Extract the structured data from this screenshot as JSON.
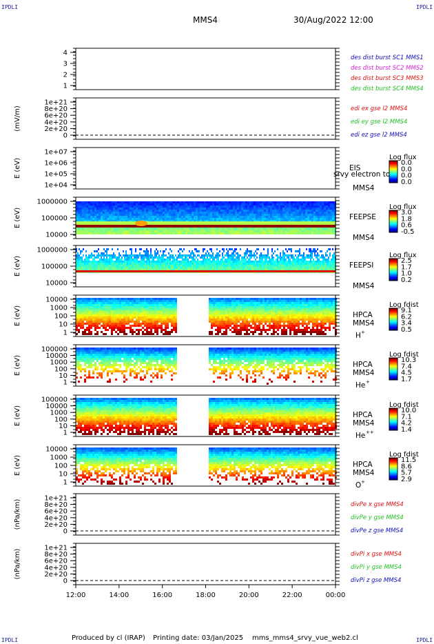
{
  "corners": {
    "tl": "IPDLI",
    "tr": "IPDLI",
    "bl": "IPDLI",
    "br": "IPDLI"
  },
  "header": {
    "spacecraft": "MMS4",
    "datetime": "30/Aug/2022 12:00"
  },
  "footer": {
    "credit": "Produced by cl (IRAP)",
    "printing": "Printing date: 03/Jan/2025",
    "file": "mms_mms4_srvy_vue_web2.cl"
  },
  "colors": {
    "blue": "#1010c0",
    "magenta": "#d020d0",
    "red": "#e01010",
    "green": "#20c020"
  },
  "chart_data": [
    {
      "type": "line",
      "panel": "burst",
      "y_ticks": [
        "1",
        "2",
        "3",
        "4"
      ],
      "ylim": [
        0.5,
        4.5
      ],
      "legend": [
        {
          "name": "des dist burst SC1 MMS1",
          "color": "#1010c0"
        },
        {
          "name": "des dist burst SC2 MMS2",
          "color": "#d020d0"
        },
        {
          "name": "des dist burst SC3 MMS3",
          "color": "#e01010"
        },
        {
          "name": "des dist burst SC4 MMS4",
          "color": "#20c020"
        }
      ]
    },
    {
      "type": "line",
      "panel": "edi",
      "ylabel": "(mV/m)",
      "y_ticks": [
        "0",
        "2e+20",
        "4e+20",
        "6e+20",
        "8e+20",
        "1e+21"
      ],
      "ylim": [
        0,
        1e+21
      ],
      "zero_line": true,
      "legend": [
        {
          "name": "edi ex gse l2 MMS4",
          "color": "#e01010"
        },
        {
          "name": "edi ey gse l2 MMS4",
          "color": "#20c020"
        },
        {
          "name": "edi ez gse l2 MMS4",
          "color": "#1010c0"
        }
      ]
    },
    {
      "type": "heatmap",
      "panel": "eis",
      "ylabel": "E (eV)",
      "y_ticks": [
        "1e+04",
        "1e+05",
        "1e+06",
        "1e+07"
      ],
      "instrument": "EIS",
      "label_extra": "srvy electron to",
      "spacecraft": "MMS4",
      "colorbar": {
        "title": "Log flux",
        "ticks": [
          "0.0",
          "0.0",
          "0.0",
          "0.0"
        ]
      }
    },
    {
      "type": "heatmap",
      "panel": "feepse",
      "ylabel": "E (eV)",
      "y_ticks": [
        "10000",
        "100000",
        "1000000"
      ],
      "instrument": "FEEPSE",
      "spacecraft": "MMS4",
      "colorbar": {
        "title": "Log flux",
        "ticks": [
          "3.0",
          "1.8",
          "0.6",
          "-0.5"
        ]
      }
    },
    {
      "type": "heatmap",
      "panel": "feepsi",
      "ylabel": "E (eV)",
      "y_ticks": [
        "10000",
        "100000",
        "1000000"
      ],
      "instrument": "FEEPSI",
      "spacecraft": "MMS4",
      "colorbar": {
        "title": "Log flux",
        "ticks": [
          "2.5",
          "1.7",
          "1.0",
          "0.2"
        ]
      }
    },
    {
      "type": "heatmap",
      "panel": "hpca_h",
      "ylabel": "E (eV)",
      "y_ticks": [
        "1",
        "10",
        "100",
        "1000",
        "10000"
      ],
      "instrument": "HPCA",
      "spacecraft": "MMS4",
      "species": "H",
      "species_sup": "+",
      "colorbar": {
        "title": "Log fdist",
        "ticks": [
          "9.1",
          "6.2",
          "3.4",
          "0.5"
        ]
      }
    },
    {
      "type": "heatmap",
      "panel": "hpca_he1",
      "ylabel": "E (eV)",
      "y_ticks": [
        "1",
        "10",
        "100",
        "1000",
        "10000",
        "100000"
      ],
      "instrument": "HPCA",
      "spacecraft": "MMS4",
      "species": "He",
      "species_sup": "+",
      "colorbar": {
        "title": "Log fdist",
        "ticks": [
          "10.3",
          "7.4",
          "4.5",
          "1.7"
        ]
      }
    },
    {
      "type": "heatmap",
      "panel": "hpca_he2",
      "ylabel": "E (eV)",
      "y_ticks": [
        "1",
        "10",
        "100",
        "1000",
        "10000",
        "100000"
      ],
      "instrument": "HPCA",
      "spacecraft": "MMS4",
      "species": "He",
      "species_sup": "++",
      "colorbar": {
        "title": "Log fdist",
        "ticks": [
          "10.0",
          "7.1",
          "4.2",
          "1.4"
        ]
      }
    },
    {
      "type": "heatmap",
      "panel": "hpca_o",
      "ylabel": "E (eV)",
      "y_ticks": [
        "1",
        "10",
        "100",
        "1000",
        "10000"
      ],
      "instrument": "HPCA",
      "spacecraft": "MMS4",
      "species": "O",
      "species_sup": "+",
      "colorbar": {
        "title": "Log fdist",
        "ticks": [
          "11.5",
          "8.6",
          "5.7",
          "2.9"
        ]
      }
    },
    {
      "type": "line",
      "panel": "divpe",
      "ylabel": "(nPa/km)",
      "y_ticks": [
        "0",
        "2e+20",
        "4e+20",
        "6e+20",
        "8e+20",
        "1e+21"
      ],
      "ylim": [
        0,
        1e+21
      ],
      "zero_line": true,
      "legend": [
        {
          "name": "divPe x gse MMS4",
          "color": "#e01010"
        },
        {
          "name": "divPe y gse MMS4",
          "color": "#20c020"
        },
        {
          "name": "divPe z gse MMS4",
          "color": "#1010c0"
        }
      ]
    },
    {
      "type": "line",
      "panel": "divpi",
      "ylabel": "(nPa/km)",
      "y_ticks": [
        "0",
        "2e+20",
        "4e+20",
        "6e+20",
        "8e+20",
        "1e+21"
      ],
      "ylim": [
        0,
        1e+21
      ],
      "zero_line": true,
      "legend": [
        {
          "name": "divPi x gse MMS4",
          "color": "#e01010"
        },
        {
          "name": "divPi y gse MMS4",
          "color": "#20c020"
        },
        {
          "name": "divPi z gse MMS4",
          "color": "#1010c0"
        }
      ],
      "x_ticks": [
        "12:00",
        "14:00",
        "16:00",
        "18:00",
        "20:00",
        "22:00",
        "00:00"
      ]
    }
  ]
}
